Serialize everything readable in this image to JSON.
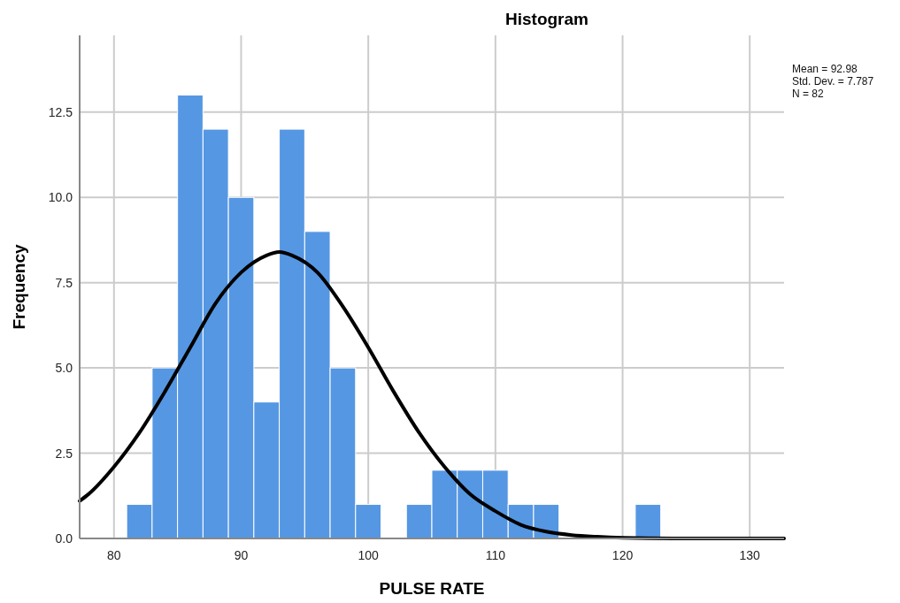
{
  "chart_data": {
    "type": "histogram",
    "title": "Histogram",
    "xlabel": "PULSE RATE",
    "ylabel": "Frequency",
    "bins": [
      81,
      83,
      85,
      87,
      89,
      91,
      93,
      95,
      97,
      99,
      101,
      103,
      105,
      107,
      109,
      111,
      113,
      115,
      117,
      119,
      121,
      123
    ],
    "values": [
      1,
      5,
      13,
      12,
      10,
      4,
      12,
      9,
      5,
      1,
      0,
      1,
      2,
      2,
      2,
      1,
      1,
      0,
      0,
      0,
      1
    ],
    "color": "#5597e3",
    "series": [
      {
        "type": "line",
        "color": "#000000",
        "x": [
          77.3,
          78,
          80,
          82,
          84,
          86,
          88,
          90,
          92,
          93,
          94,
          96,
          98,
          100,
          102,
          104,
          106,
          108,
          110,
          112,
          114,
          116,
          118,
          120,
          124,
          132.7
        ],
        "values": [
          1.1,
          1.3,
          2.1,
          3.1,
          4.3,
          5.6,
          6.9,
          7.8,
          8.3,
          8.4,
          8.3,
          7.8,
          6.8,
          5.6,
          4.3,
          3.1,
          2.1,
          1.3,
          0.8,
          0.4,
          0.2,
          0.1,
          0.05,
          0.02,
          0,
          0
        ]
      }
    ],
    "xlim": [
      77.3,
      132.7
    ],
    "xticks": [
      80,
      90,
      100,
      110,
      120,
      130
    ],
    "ylim": [
      0,
      14.75
    ],
    "yticks": [
      {
        "value": 0,
        "label": "0.0"
      },
      {
        "value": 2.5,
        "label": "2.5"
      },
      {
        "value": 5,
        "label": "5.0"
      },
      {
        "value": 7.5,
        "label": "7.5"
      },
      {
        "value": 10,
        "label": "10.0"
      },
      {
        "value": 12.5,
        "label": "12.5"
      }
    ],
    "grid": true,
    "annotations": [
      "Mean = 92.98\nStd. Dev. = 7.787\nN = 82"
    ]
  }
}
